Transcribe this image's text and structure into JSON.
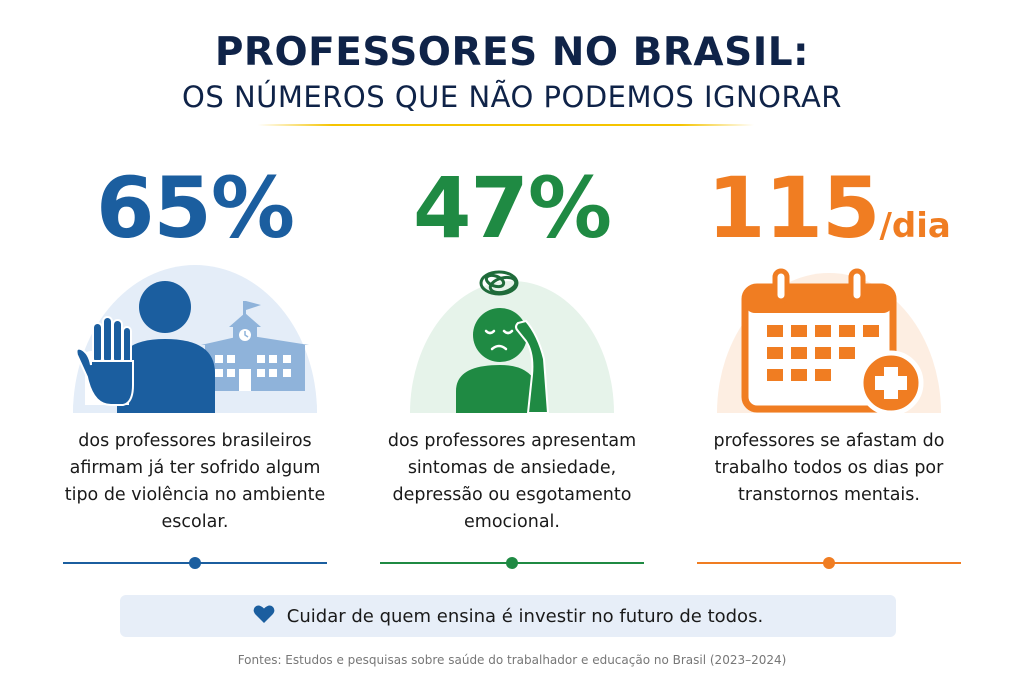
{
  "header": {
    "title": "PROFESSORES NO BRASIL:",
    "subtitle": "OS NÚMEROS QUE NÃO PODEMOS IGNORAR"
  },
  "stats": [
    {
      "value": "65%",
      "unit": "",
      "color": "#1b5e9f",
      "icon": "violence-stop-hand-school-icon",
      "lines": [
        "dos professores brasileiros",
        "afirmam já ter sofrido algum",
        "tipo de violência no ambiente",
        "escolar."
      ]
    },
    {
      "value": "47%",
      "unit": "",
      "color": "#1f8a43",
      "icon": "anxious-person-icon",
      "lines": [
        "dos professores apresentam",
        "sintomas de ansiedade,",
        "depressão ou esgotamento",
        "emocional."
      ]
    },
    {
      "value": "115",
      "unit": "/dia",
      "color": "#f07d22",
      "icon": "calendar-medical-icon",
      "lines": [
        "professores se afastam do",
        "trabalho todos os dias por",
        "transtornos mentais."
      ]
    }
  ],
  "banner": {
    "icon": "heart-icon",
    "text": "Cuidar de quem ensina é investir no futuro de todos."
  },
  "source": "Fontes: Estudos e pesquisas sobre saúde do trabalhador e educação no Brasil (2023–2024)",
  "colors": {
    "navy": "#0f2348",
    "yellow_rule": "#f5c400",
    "blue": "#1b5e9f",
    "green": "#1f8a43",
    "orange": "#f07d22",
    "banner_bg": "#e7eef8"
  }
}
